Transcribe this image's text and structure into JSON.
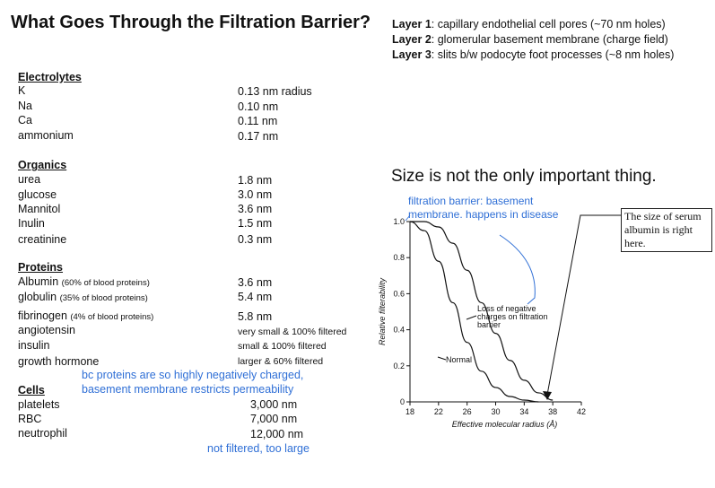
{
  "title": "What Goes Through the Filtration Barrier?",
  "layers": [
    {
      "label": "Layer 1",
      "text": ": capillary endothelial cell pores (~70 nm holes)"
    },
    {
      "label": "Layer 2",
      "text": ": glomerular basement membrane (charge field)"
    },
    {
      "label": "Layer 3",
      "text": ": slits b/w podocyte foot processes (~8 nm holes)"
    }
  ],
  "electrolytes": {
    "heading": "Electrolytes",
    "items": [
      {
        "name": "K",
        "value": "0.13 nm radius"
      },
      {
        "name": "Na",
        "value": "0.10 nm"
      },
      {
        "name": "Ca",
        "value": "0.11 nm"
      },
      {
        "name": "ammonium",
        "value": "0.17 nm"
      }
    ]
  },
  "organics": {
    "heading": "Organics",
    "items": [
      {
        "name": "urea",
        "value": "1.8 nm"
      },
      {
        "name": "glucose",
        "value": "3.0 nm"
      },
      {
        "name": "Mannitol",
        "value": "3.6 nm"
      },
      {
        "name": "Inulin",
        "value": "1.5 nm"
      },
      {
        "name": "creatinine",
        "value": "0.3 nm"
      }
    ]
  },
  "proteins": {
    "heading": "Proteins",
    "items": [
      {
        "name": "Albumin",
        "sub": "(60% of blood proteins)",
        "value": "3.6 nm"
      },
      {
        "name": "globulin",
        "sub": "(35% of blood proteins)",
        "value": "5.4 nm"
      },
      {
        "name": "fibrinogen",
        "sub": "(4% of blood proteins)",
        "value": "5.8 nm"
      },
      {
        "name": "angiotensin",
        "sub": "",
        "value": "very small & 100% filtered"
      },
      {
        "name": "insulin",
        "sub": "",
        "value": "small & 100% filtered"
      },
      {
        "name": "growth hormone",
        "sub": "",
        "value": "larger & 60% filtered"
      }
    ]
  },
  "protein_note": [
    "bc proteins are so highly negatively charged,",
    "basement membrane restricts permeability"
  ],
  "cells": {
    "heading": "Cells",
    "items": [
      {
        "name": "platelets",
        "value": "3,000 nm"
      },
      {
        "name": "RBC",
        "value": "7,000 nm"
      },
      {
        "name": "neutrophil",
        "value": "12,000 nm"
      }
    ]
  },
  "cells_note": "not filtered, too large",
  "size_heading": "Size is not the only important thing.",
  "filtration_note": [
    "filtration barrier: basement",
    "membrane. happens in disease"
  ],
  "serum_note": [
    "The size of serum",
    "albumin is right",
    "here."
  ],
  "chart_data": {
    "type": "line",
    "xlabel": "Effective molecular radius (Å)",
    "ylabel": "Relative filterability",
    "x_ticks": [
      18,
      22,
      26,
      30,
      34,
      38,
      42
    ],
    "y_ticks": [
      "0",
      "0.2",
      "0.4",
      "0.6",
      "0.8",
      "1.0"
    ],
    "xlim": [
      18,
      42
    ],
    "ylim": [
      0,
      1.0
    ],
    "series": [
      {
        "name": "Normal",
        "x": [
          18,
          20,
          22,
          24,
          26,
          28,
          30,
          32,
          34,
          36
        ],
        "y": [
          1.0,
          0.95,
          0.78,
          0.55,
          0.33,
          0.17,
          0.08,
          0.03,
          0.01,
          0.0
        ]
      },
      {
        "name": "Loss of negative charges on filtration barrier",
        "x": [
          18,
          20,
          22,
          24,
          26,
          28,
          30,
          32,
          34,
          36,
          38
        ],
        "y": [
          1.0,
          1.0,
          0.97,
          0.88,
          0.73,
          0.55,
          0.38,
          0.23,
          0.12,
          0.05,
          0.01
        ]
      }
    ],
    "series_labels": {
      "normal": "Normal",
      "loss": [
        "Loss of negative",
        "charges on filtration",
        "barrier"
      ]
    }
  }
}
